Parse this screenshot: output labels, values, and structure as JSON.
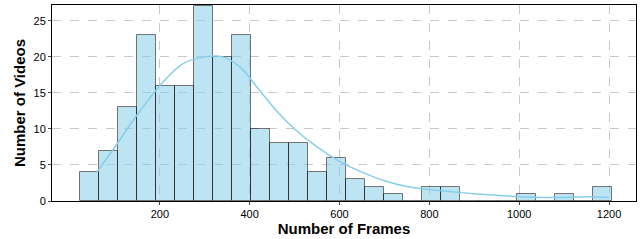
{
  "chart_data": {
    "type": "histogram",
    "x_label": "Number of Frames",
    "y_label": "Number of Videos",
    "bins": [
      22.0,
      64.3,
      106.6,
      148.9,
      191.2,
      233.5,
      275.8,
      318.1,
      360.4,
      402.7,
      445.0,
      487.3,
      529.6,
      571.9,
      614.2,
      656.5,
      698.8,
      741.1,
      783.4,
      825.7,
      868.0,
      910.3,
      952.6,
      994.9,
      1037.2,
      1079.5,
      1121.8,
      1164.1,
      1206.4
    ],
    "values": [
      4,
      7,
      13,
      23,
      16,
      16,
      27,
      20,
      23,
      10,
      8,
      8,
      4,
      6,
      3,
      2,
      1,
      0,
      2,
      2,
      0,
      0,
      0,
      1,
      0,
      1,
      0,
      2
    ],
    "color": "#87ceeb",
    "kde": {
      "type": "line",
      "color": "#87ceeb",
      "x": [
        60,
        100,
        150,
        200,
        250,
        300,
        340,
        380,
        420,
        460,
        500,
        550,
        600,
        650,
        700,
        750,
        800,
        850,
        900,
        950,
        1000,
        1050,
        1100,
        1150,
        1200
      ],
      "values": [
        4,
        7.5,
        12,
        16,
        19,
        20,
        20,
        18.5,
        15.5,
        12.5,
        10,
        7.5,
        5.5,
        4,
        2.8,
        2,
        1.6,
        1.3,
        1,
        0.8,
        0.6,
        0.5,
        0.5,
        0.6,
        0.5
      ]
    },
    "xlim": [
      -40,
      1260
    ],
    "xticks": [
      200,
      400,
      600,
      800,
      1000,
      1200
    ],
    "ylim": [
      0,
      27.2
    ],
    "yticks": [
      0,
      5,
      10,
      15,
      20,
      25
    ],
    "grid": true
  }
}
